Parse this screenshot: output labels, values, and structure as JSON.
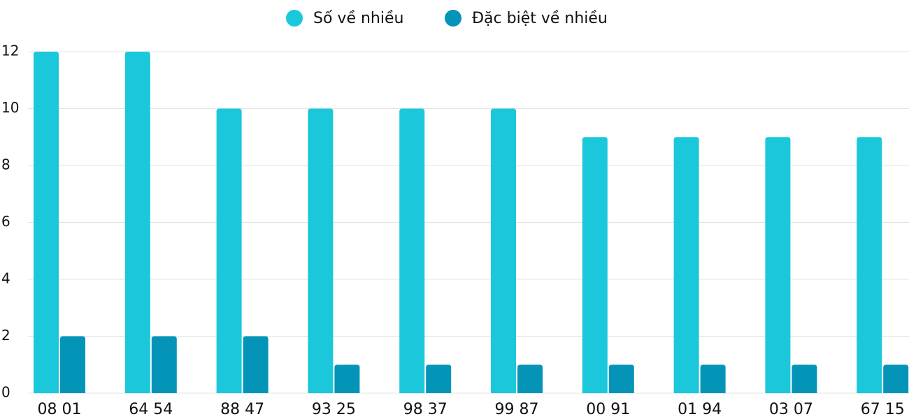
{
  "chart_data": {
    "type": "bar",
    "categories": [
      "08 01",
      "64 54",
      "88 47",
      "93 25",
      "98 37",
      "99 87",
      "00 91",
      "01 94",
      "03 07",
      "67 15"
    ],
    "series": [
      {
        "name": "Số về nhiều",
        "color": "#1bc8db",
        "values": [
          12,
          12,
          10,
          10,
          10,
          10,
          9,
          9,
          9,
          9
        ]
      },
      {
        "name": "Đặc biệt về nhiều",
        "color": "#0494b8",
        "values": [
          2,
          2,
          2,
          1,
          1,
          1,
          1,
          1,
          1,
          1
        ]
      }
    ],
    "ylim": [
      0,
      12
    ],
    "yticks": [
      0,
      2,
      4,
      6,
      8,
      10,
      12
    ],
    "grid": true,
    "legend": "top"
  }
}
